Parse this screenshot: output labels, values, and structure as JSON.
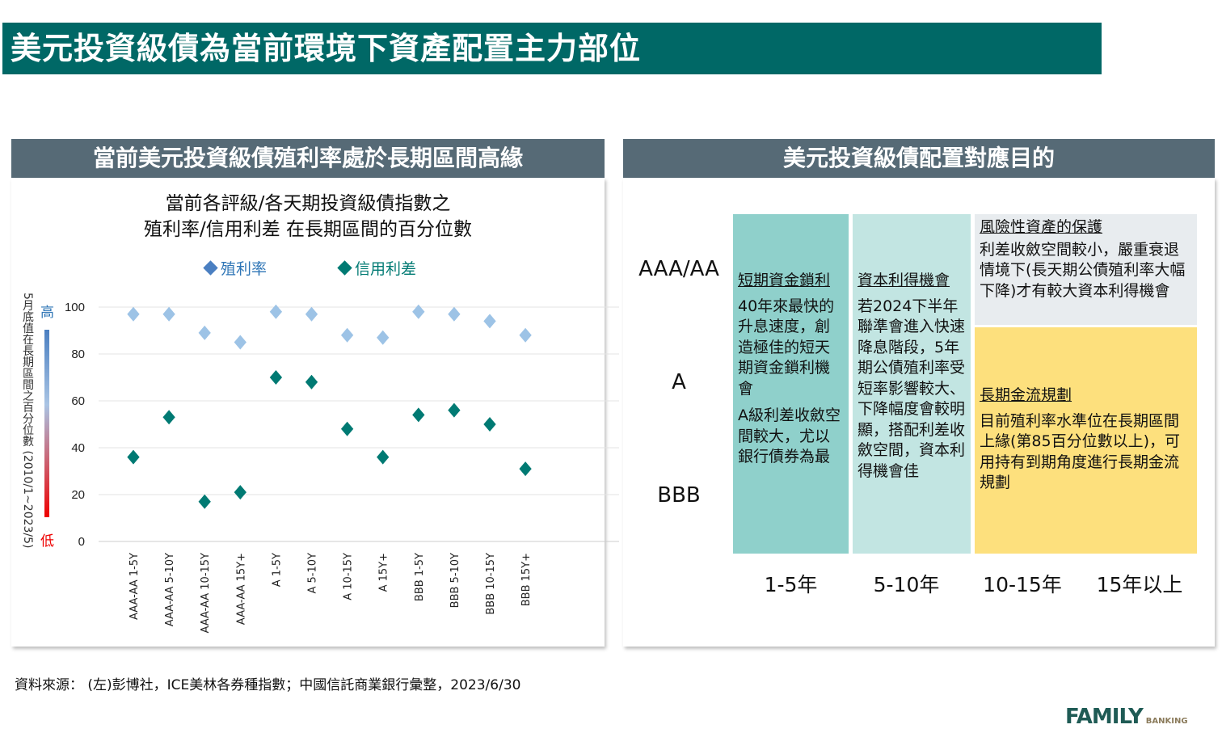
{
  "title": "美元投資級債為當前環境下資產配置主力部位",
  "left_panel": {
    "header": "當前美元投資級債殖利率處於長期區間高緣"
  },
  "right_panel": {
    "header": "美元投資級債配置對應目的",
    "row_labels": [
      "AAA/AA",
      "A",
      "BBB"
    ],
    "col_labels": [
      "1-5年",
      "5-10年",
      "10-15年",
      "15年以上"
    ],
    "cells": [
      {
        "heading": "短期資金鎖利",
        "body": "40年來最快的升息速度，創造極佳的短天期資金鎖利機會",
        "body2": "A級利差收斂空間較大，尤以銀行債券為最",
        "color": "#8fd0cb"
      },
      {
        "heading": "資本利得機會",
        "body": "若2024下半年聯準會進入快速降息階段，5年期公債殖利率受短率影響較大、下降幅度會較明顯，搭配利差收斂空間，資本利得機會佳",
        "color": "#c2e5e2"
      },
      {
        "heading": "風險性資產的保護",
        "body": "利差收斂空間較小，嚴重衰退情境下(長天期公債殖利率大幅下降)才有較大資本利得機會",
        "color": "#e8ecef"
      },
      {
        "heading": "長期金流規劃",
        "body": "目前殖利率水準位在長期區間上緣(第85百分位數以上)，可用持有到期角度進行長期金流規劃",
        "color": "#fde07d"
      }
    ]
  },
  "chart_data": {
    "type": "scatter",
    "title": "當前各評級/各天期投資級債指數之\n殖利率/信用利差 在長期區間的百分位數",
    "title_lines": [
      "當前各評級/各天期投資級債指數之",
      "殖利率/信用利差 在長期區間的百分位數"
    ],
    "ylabel": "5月底值在長期區間之百分位數 (2010/1~2023/5)",
    "ylabel_high": "高",
    "ylabel_low": "低",
    "ylim": [
      0,
      100
    ],
    "yticks": [
      0,
      20,
      40,
      60,
      80,
      100
    ],
    "legend_position": "top",
    "categories": [
      "AAA-AA 1-5Y",
      "AAA-AA 5-10Y",
      "AAA-AA 10-15Y",
      "AAA-AA 15Y+",
      "A 1-5Y",
      "A 5-10Y",
      "A 10-15Y",
      "A 15Y+",
      "BBB 1-5Y",
      "BBB 5-10Y",
      "BBB 10-15Y",
      "BBB 15Y+"
    ],
    "series": [
      {
        "name": "殖利率",
        "color": "#9dc3e6",
        "values": [
          97,
          97,
          89,
          85,
          98,
          97,
          88,
          87,
          98,
          97,
          94,
          88
        ]
      },
      {
        "name": "信用利差",
        "color": "#007a73",
        "values": [
          36,
          53,
          17,
          21,
          70,
          68,
          48,
          36,
          54,
          56,
          50,
          31
        ]
      }
    ]
  },
  "source": "資料來源： (左)彭博社，ICE美林各券種指數；中國信託商業銀行彙整，2023/6/30",
  "logo": "FAMILY BANKING"
}
